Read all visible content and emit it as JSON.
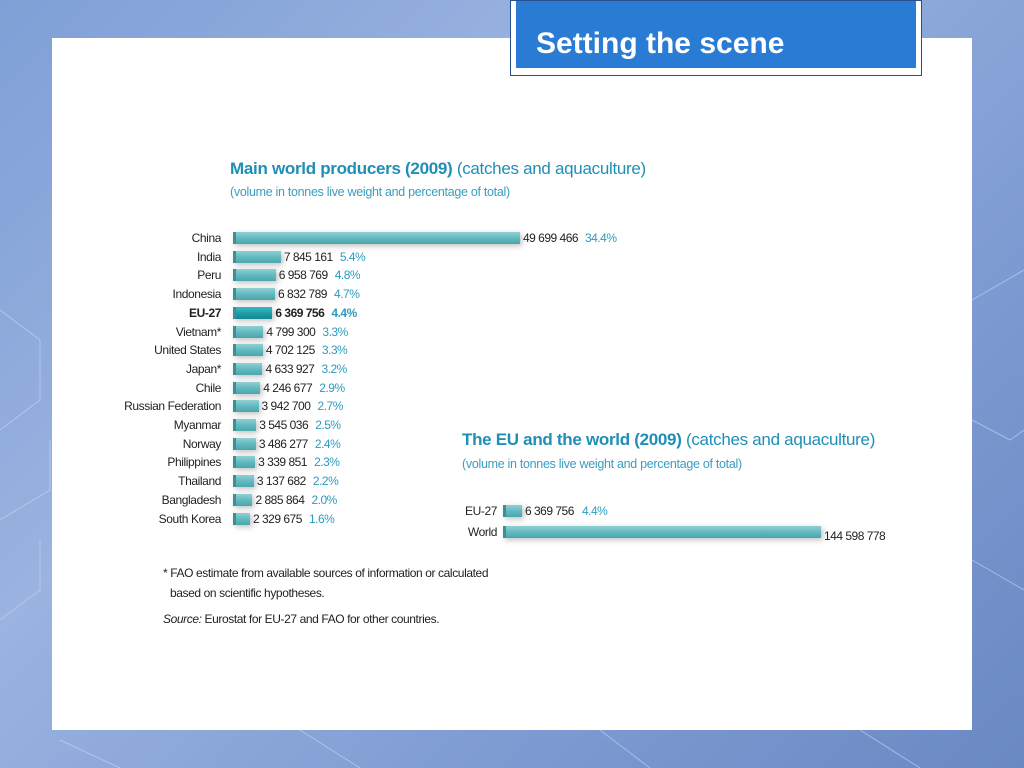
{
  "slide": {
    "title": "Setting the scene"
  },
  "chart_data": [
    {
      "type": "bar",
      "title": "Main world producers (2009)",
      "title_suffix": "(catches and aquaculture)",
      "subtitle": "(volume in tonnes live weight and percentage of total)",
      "orientation": "horizontal",
      "categories": [
        "China",
        "India",
        "Peru",
        "Indonesia",
        "EU-27",
        "Vietnam*",
        "United States",
        "Japan*",
        "Chile",
        "Russian Federation",
        "Myanmar",
        "Norway",
        "Philippines",
        "Thailand",
        "Bangladesh",
        "South Korea"
      ],
      "values": [
        49699466,
        7845161,
        6958769,
        6832789,
        6369756,
        4799300,
        4702125,
        4633927,
        4246677,
        3942700,
        3545036,
        3486277,
        3339851,
        3137682,
        2885864,
        2329675
      ],
      "value_labels": [
        "49 699 466",
        "7 845 161",
        "6 958 769",
        "6 832 789",
        "6 369 756",
        "4 799 300",
        "4 702 125",
        "4 633 927",
        "4 246 677",
        "3 942 700",
        "3 545 036",
        "3 486 277",
        "3 339 851",
        "3 137 682",
        "2 885 864",
        "2 329 675"
      ],
      "percent_labels": [
        "34.4%",
        "5.4%",
        "4.8%",
        "4.7%",
        "4.4%",
        "3.3%",
        "3.3%",
        "3.2%",
        "2.9%",
        "2.7%",
        "2.5%",
        "2.4%",
        "2.3%",
        "2.2%",
        "2.0%",
        "1.6%"
      ],
      "highlight": "EU-27"
    },
    {
      "type": "bar",
      "title": "The EU and the world (2009)",
      "title_suffix": "(catches and aquaculture)",
      "subtitle": "(volume in tonnes live weight and percentage of total)",
      "orientation": "horizontal",
      "categories": [
        "EU-27",
        "World"
      ],
      "values": [
        6369756,
        144598778
      ],
      "value_labels": [
        "6 369 756",
        "144 598 778"
      ],
      "percent_labels": [
        "4.4%",
        ""
      ]
    }
  ],
  "notes": {
    "footnote_line1": "* FAO estimate from available sources of information or calculated",
    "footnote_line2": "based on scientific hypotheses.",
    "source_label": "Source:",
    "source_text": " Eurostat for EU-27 and FAO for other countries."
  },
  "colors": {
    "accent": "#2a7bd4",
    "bar": "#5fb8bd",
    "bar_highlight": "#1a9aa3",
    "title": "#1f8fb6"
  }
}
